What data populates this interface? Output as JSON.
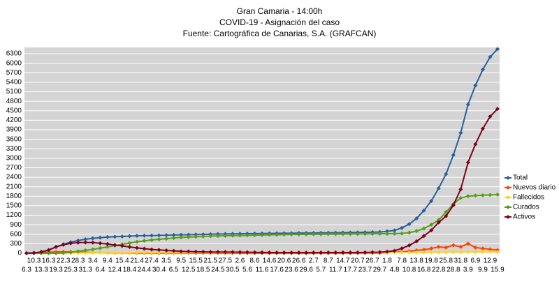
{
  "chart_data": {
    "type": "line",
    "title": "Gran Camaria - 14:00h",
    "subtitle": "COVID-19 - Asignación del caso",
    "source": "Fuente: Cartográfica de Canarias, S.A. (GRAFCAN)",
    "categories": [
      "6.3",
      "10.3",
      "13.3",
      "16.3",
      "19.3",
      "22.3",
      "25.3",
      "28.3",
      "31.3",
      "3.4",
      "6.4",
      "9.4",
      "12.4",
      "15.4",
      "18.4",
      "21.4",
      "24.4",
      "27.4",
      "30.4",
      "3.5",
      "6.5",
      "9.5",
      "12.5",
      "15.5",
      "18.5",
      "21.5",
      "24.5",
      "27.5",
      "30.5",
      "2.6",
      "5.6",
      "8.6",
      "11.6",
      "14.6",
      "17.6",
      "20.6",
      "23.6",
      "26.6",
      "29.6",
      "2.7",
      "5.7",
      "8.7",
      "11.7",
      "14.7",
      "17.7",
      "20.7",
      "23.7",
      "26.7",
      "29.7",
      "1.8",
      "4.8",
      "7.8",
      "10.8",
      "13.8",
      "16.8",
      "19.8",
      "22.8",
      "25.8",
      "28.8",
      "31.8",
      "3.9",
      "6.9",
      "9.9",
      "12.9",
      "15.9"
    ],
    "series": [
      {
        "name": "Total",
        "color": "#2a6099",
        "values": [
          0,
          10,
          40,
          100,
          200,
          280,
          350,
          400,
          440,
          470,
          490,
          510,
          520,
          530,
          540,
          550,
          555,
          560,
          565,
          570,
          575,
          580,
          585,
          590,
          595,
          600,
          605,
          610,
          612,
          615,
          617,
          620,
          622,
          625,
          627,
          630,
          632,
          635,
          637,
          640,
          642,
          645,
          648,
          650,
          652,
          655,
          660,
          665,
          670,
          690,
          720,
          800,
          920,
          1100,
          1350,
          1650,
          2050,
          2500,
          3100,
          3800,
          4700,
          5300,
          5800,
          6200,
          6450
        ]
      },
      {
        "name": "Nuevos diario",
        "color": "#ff4000",
        "values": [
          0,
          10,
          20,
          30,
          40,
          40,
          40,
          30,
          30,
          20,
          20,
          15,
          10,
          10,
          10,
          5,
          5,
          5,
          5,
          5,
          5,
          5,
          5,
          5,
          5,
          5,
          5,
          3,
          2,
          2,
          2,
          2,
          2,
          3,
          3,
          3,
          3,
          3,
          2,
          3,
          2,
          3,
          3,
          2,
          2,
          3,
          5,
          5,
          5,
          20,
          30,
          40,
          60,
          90,
          110,
          150,
          200,
          180,
          250,
          200,
          300,
          180,
          150,
          120,
          100
        ]
      },
      {
        "name": "Fallecidos",
        "color": "#ffd320",
        "values": [
          0,
          0,
          0,
          1,
          2,
          4,
          6,
          8,
          12,
          15,
          17,
          19,
          20,
          20,
          21,
          21,
          21,
          21,
          21,
          21,
          21,
          21,
          21,
          22,
          22,
          22,
          22,
          22,
          22,
          22,
          22,
          22,
          22,
          22,
          22,
          22,
          22,
          22,
          22,
          22,
          22,
          22,
          22,
          22,
          22,
          22,
          22,
          22,
          22,
          22,
          22,
          23,
          23,
          24,
          25,
          26,
          27,
          28,
          30,
          32,
          34,
          36,
          38,
          40,
          42
        ]
      },
      {
        "name": "Curados",
        "color": "#579d1c",
        "values": [
          0,
          0,
          0,
          0,
          0,
          10,
          30,
          60,
          90,
          120,
          160,
          200,
          240,
          280,
          320,
          360,
          390,
          420,
          440,
          460,
          480,
          500,
          510,
          520,
          530,
          540,
          545,
          550,
          555,
          560,
          565,
          570,
          575,
          580,
          585,
          590,
          592,
          595,
          598,
          600,
          600,
          602,
          604,
          606,
          608,
          610,
          612,
          614,
          616,
          618,
          620,
          625,
          650,
          700,
          780,
          900,
          1050,
          1300,
          1550,
          1750,
          1800,
          1820,
          1830,
          1840,
          1850
        ]
      },
      {
        "name": "Activos",
        "color": "#7e0021",
        "values": [
          0,
          10,
          40,
          99,
          198,
          266,
          314,
          332,
          338,
          335,
          313,
          291,
          260,
          230,
          199,
          169,
          144,
          119,
          104,
          89,
          74,
          59,
          54,
          48,
          43,
          38,
          38,
          38,
          35,
          33,
          30,
          28,
          25,
          23,
          20,
          18,
          18,
          18,
          17,
          18,
          20,
          21,
          22,
          22,
          22,
          23,
          26,
          29,
          32,
          50,
          78,
          152,
          247,
          376,
          545,
          724,
          973,
          1172,
          1518,
          2018,
          2866,
          3444,
          3932,
          4320,
          4558
        ]
      }
    ],
    "ylim": [
      0,
      6500
    ],
    "yticks": [
      0,
      300,
      600,
      900,
      1200,
      1500,
      1800,
      2100,
      2400,
      2700,
      3000,
      3300,
      3600,
      3900,
      4200,
      4500,
      4800,
      5100,
      5400,
      5700,
      6000,
      6300
    ],
    "grid": true,
    "legend": "right"
  }
}
